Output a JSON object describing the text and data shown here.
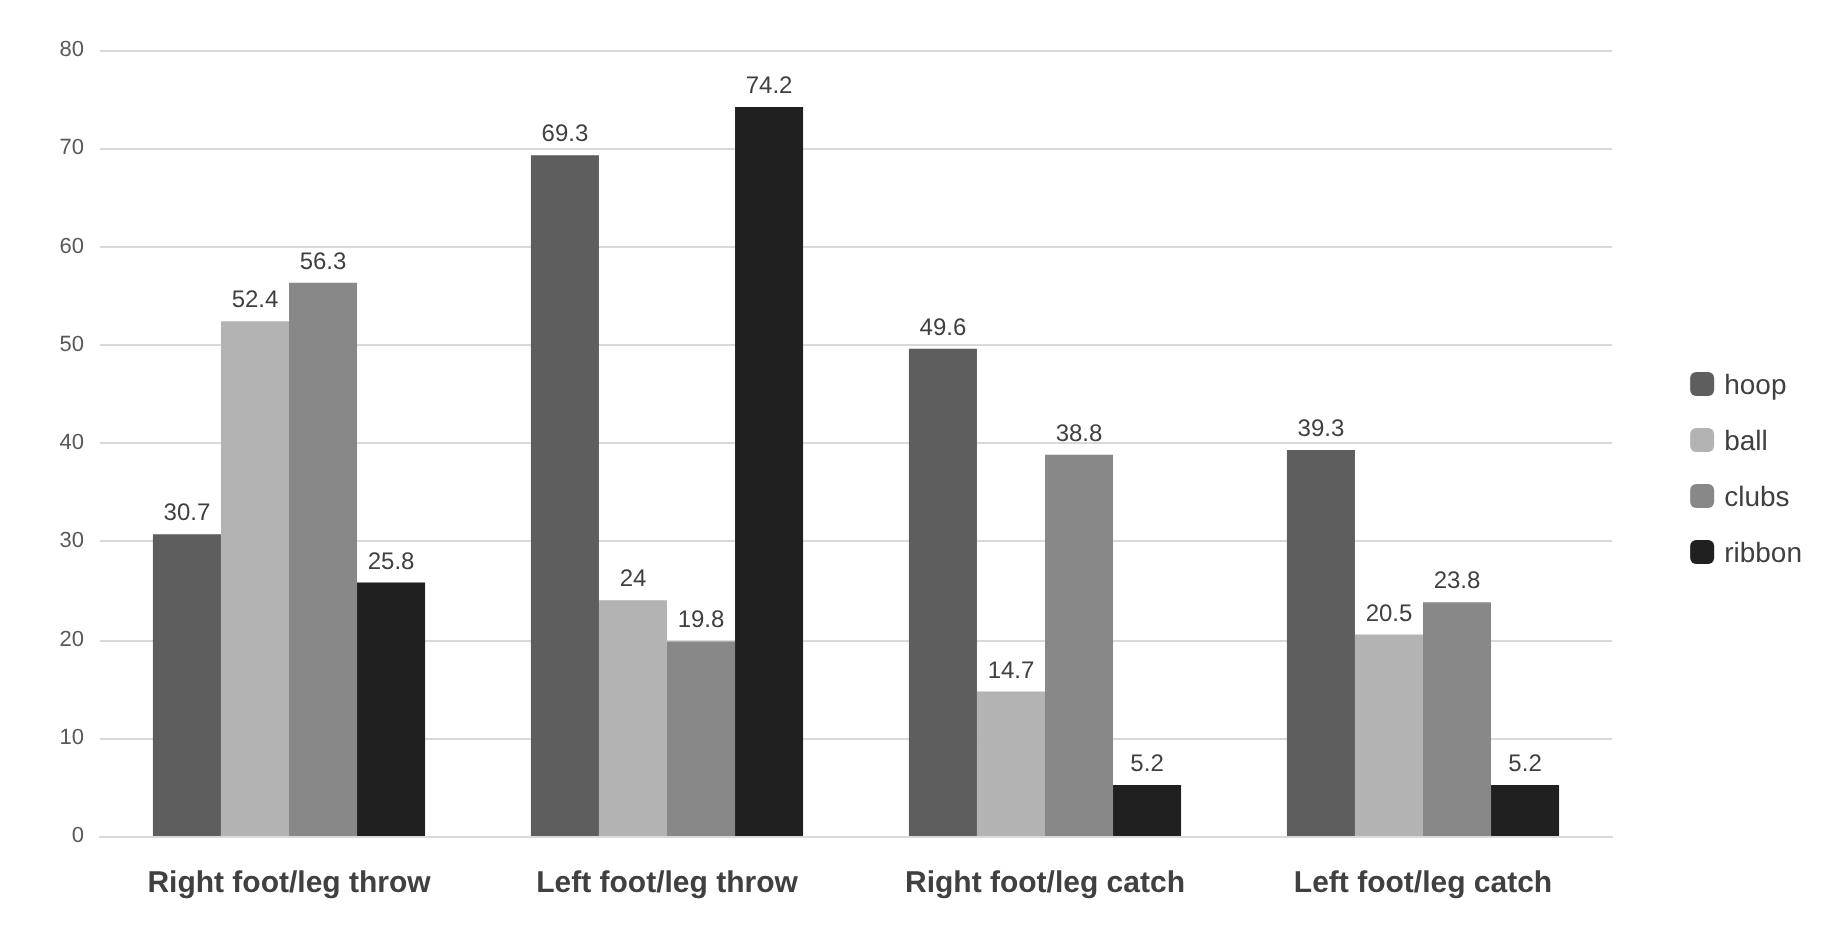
{
  "chart_data": {
    "type": "bar",
    "categories": [
      "Right foot/leg throw",
      "Left foot/leg throw",
      "Right foot/leg catch",
      "Left foot/leg catch"
    ],
    "series": [
      {
        "name": "hoop",
        "color": "#5e5e5e",
        "values": [
          30.7,
          69.3,
          49.6,
          39.3
        ]
      },
      {
        "name": "ball",
        "color": "#b3b3b3",
        "values": [
          52.4,
          24,
          14.7,
          20.5
        ]
      },
      {
        "name": "clubs",
        "color": "#888888",
        "values": [
          56.3,
          19.8,
          38.8,
          23.8
        ]
      },
      {
        "name": "ribbon",
        "color": "#202020",
        "values": [
          25.8,
          74.2,
          5.2,
          5.2
        ]
      }
    ],
    "ylim": [
      0,
      80
    ],
    "yticks": [
      0,
      10,
      20,
      30,
      40,
      50,
      60,
      70,
      80
    ],
    "grid": "y",
    "legend": "right",
    "data_labels": true
  }
}
